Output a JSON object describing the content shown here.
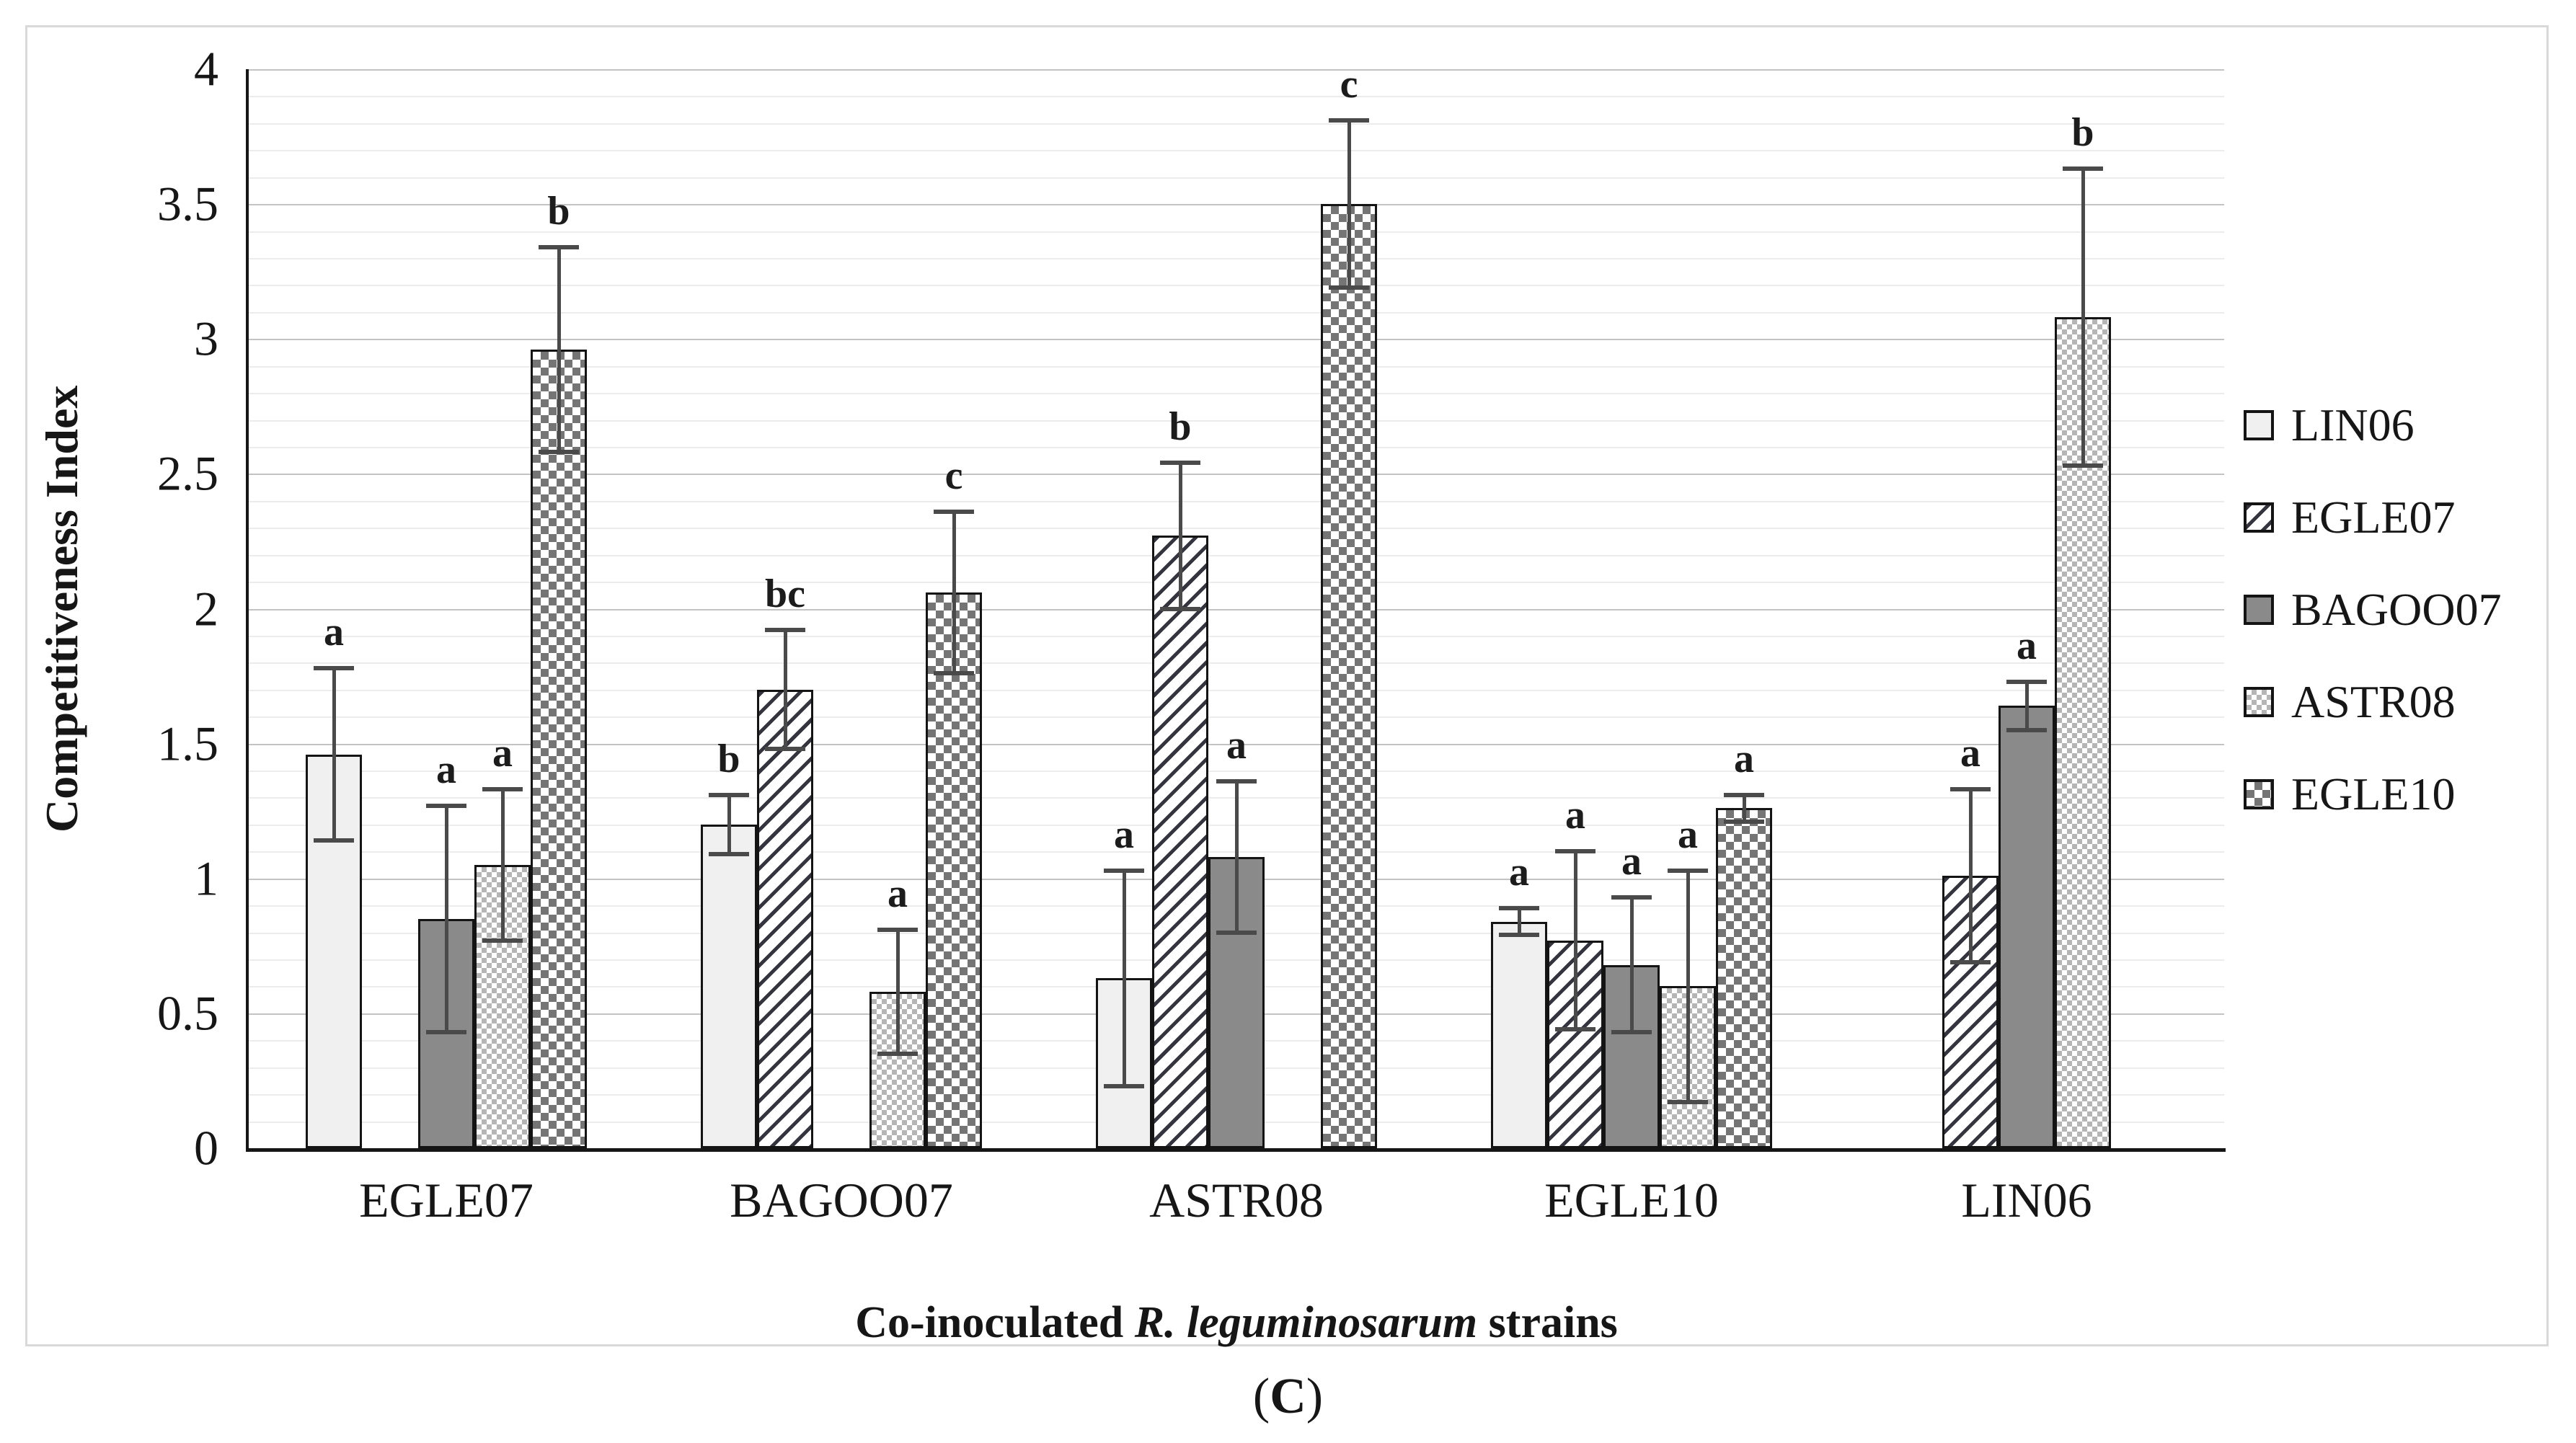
{
  "figure": {
    "caption_open": "(",
    "caption_letter": "C",
    "caption_close": ")"
  },
  "palette": {
    "light": "#f0f0f0",
    "dark": "#8a8a8a",
    "hatch": "#34343e",
    "fine": "#b5b5b5",
    "coarse": "#757575",
    "err": "#4a4a4a",
    "grid_minor": "#ececec",
    "grid_major": "#c3c3c3",
    "axis": "#161616",
    "border": "#d9d9d9"
  },
  "chart_data": {
    "type": "bar",
    "title": "",
    "ylabel": "Competitiveness Index",
    "xlabel_prefix": "Co-inoculated ",
    "xlabel_italic": "R. leguminosarum",
    "xlabel_suffix": " strains",
    "ylim": [
      0,
      4
    ],
    "ytick_step_minor": 0.1,
    "ytick_step_major": 0.5,
    "yticks": [
      "0",
      "0.5",
      "1",
      "1.5",
      "2",
      "2.5",
      "3",
      "3.5",
      "4"
    ],
    "grid": true,
    "legend_position": "right",
    "categories": [
      "EGLE07",
      "BAGOO07",
      "ASTR08",
      "EGLE10",
      "LIN06"
    ],
    "series": [
      {
        "name": "LIN06",
        "pattern": "solid-light",
        "values": [
          1.46,
          1.2,
          0.63,
          0.84,
          null
        ],
        "errors": [
          0.32,
          0.11,
          0.4,
          0.05,
          null
        ],
        "letters": [
          "a",
          "b",
          "a",
          "a",
          null
        ]
      },
      {
        "name": "EGLE07",
        "pattern": "diagonal",
        "values": [
          null,
          1.7,
          2.27,
          0.77,
          1.01
        ],
        "errors": [
          null,
          0.22,
          0.27,
          0.33,
          0.32
        ],
        "letters": [
          null,
          "bc",
          "b",
          "a",
          "a"
        ]
      },
      {
        "name": "BAGOO07",
        "pattern": "solid-dark",
        "values": [
          0.85,
          null,
          1.08,
          0.68,
          1.64
        ],
        "errors": [
          0.42,
          null,
          0.28,
          0.25,
          0.09
        ],
        "letters": [
          "a",
          null,
          "a",
          "a",
          "a"
        ]
      },
      {
        "name": "ASTR08",
        "pattern": "fine-check",
        "values": [
          1.05,
          0.58,
          null,
          0.6,
          3.08
        ],
        "errors": [
          0.28,
          0.23,
          null,
          0.43,
          0.55
        ],
        "letters": [
          "a",
          "a",
          null,
          "a",
          "b"
        ]
      },
      {
        "name": "EGLE10",
        "pattern": "coarse-check",
        "values": [
          2.96,
          2.06,
          3.5,
          1.26,
          null
        ],
        "errors": [
          0.38,
          0.3,
          0.31,
          0.05,
          null
        ],
        "letters": [
          "b",
          "c",
          "c",
          "a",
          null
        ]
      }
    ]
  }
}
